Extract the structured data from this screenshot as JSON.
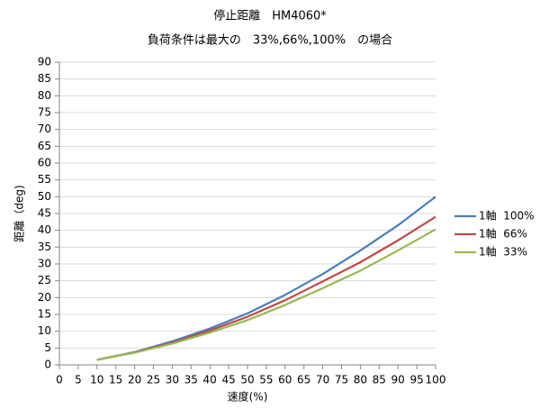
{
  "chart_data": {
    "type": "line",
    "title": "停止距離　HM4060*",
    "subtitle": "負荷条件は最大の　33%,66%,100%　の場合",
    "x_label": "速度(%)",
    "y_label": "距離（deg)",
    "x": [
      10,
      20,
      30,
      40,
      50,
      60,
      70,
      80,
      90,
      100
    ],
    "series": [
      {
        "name": "1軸  100%",
        "color": "#4a7ebb",
        "values": [
          1.5,
          3.8,
          7,
          10.8,
          15.3,
          20.8,
          27,
          34,
          41.5,
          50
        ]
      },
      {
        "name": "1軸  66%",
        "color": "#be4b48",
        "values": [
          1.5,
          3.7,
          6.6,
          10.2,
          14.3,
          19.2,
          24.8,
          30.5,
          37,
          44
        ]
      },
      {
        "name": "1軸  33%",
        "color": "#98b954",
        "values": [
          1.5,
          3.6,
          6.3,
          9.6,
          13.3,
          17.8,
          22.8,
          28,
          34,
          40.3
        ]
      }
    ],
    "xlim": [
      0,
      100
    ],
    "xticks": [
      0,
      5,
      10,
      15,
      20,
      25,
      30,
      35,
      40,
      45,
      50,
      55,
      60,
      65,
      70,
      75,
      80,
      85,
      90,
      95,
      100
    ],
    "ylim": [
      0,
      90
    ],
    "yticks": [
      0,
      5,
      10,
      15,
      20,
      25,
      30,
      35,
      40,
      45,
      50,
      55,
      60,
      65,
      70,
      75,
      80,
      85,
      90
    ],
    "grid": true,
    "legend": "right"
  }
}
